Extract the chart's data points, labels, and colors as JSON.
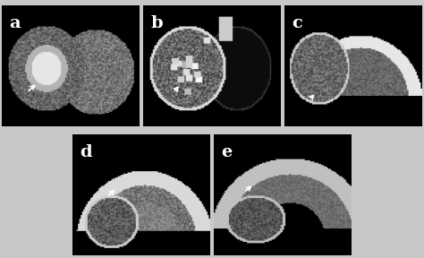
{
  "figure_bg": "#ffffff",
  "panel_bg": "#000000",
  "labels": [
    "a",
    "b",
    "c",
    "d",
    "e"
  ],
  "label_color": "white",
  "label_fontsize": 14,
  "arrow_color": "white",
  "top_row": [
    "a",
    "b",
    "c"
  ],
  "bottom_row": [
    "d",
    "e"
  ],
  "figsize": [
    4.74,
    2.88
  ],
  "dpi": 100,
  "outer_bg": "#c8c8c8",
  "panel_border_color": "#000000"
}
